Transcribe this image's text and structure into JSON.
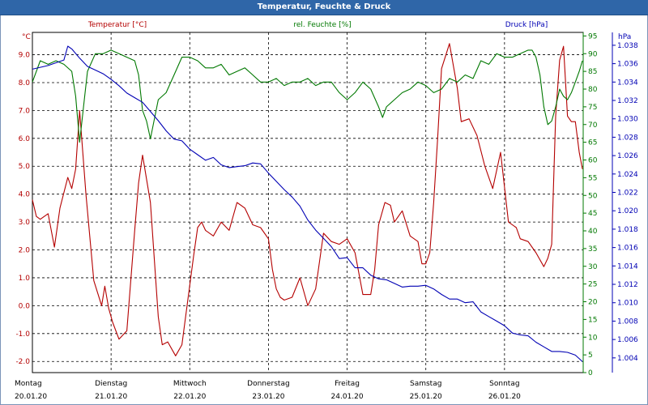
{
  "window": {
    "title": "Temperatur, Feuchte & Druck"
  },
  "colors": {
    "temperature": "#b40000",
    "humidity": "#007800",
    "pressure": "#0000b4",
    "grid": "#000000"
  },
  "chart_data": {
    "type": "line",
    "title": "Temperatur, Feuchte & Druck",
    "grid": true,
    "x_ticks": [
      {
        "day": "Montag",
        "date": "20.01.20"
      },
      {
        "day": "Dienstag",
        "date": "21.01.20"
      },
      {
        "day": "Mittwoch",
        "date": "22.01.20"
      },
      {
        "day": "Donnerstag",
        "date": "23.01.20"
      },
      {
        "day": "Freitag",
        "date": "24.01.20"
      },
      {
        "day": "Samstag",
        "date": "25.01.20"
      },
      {
        "day": "Sonntag",
        "date": "26.01.20"
      }
    ],
    "xlim": [
      0,
      7
    ],
    "axes": {
      "temperature": {
        "label": "Temperatur [°C]",
        "unit": "°C",
        "ylim": [
          -2.4,
          9.8
        ],
        "ticks": [
          "-2.0",
          "-1.0",
          "0.0",
          "1.0",
          "2.0",
          "3.0",
          "4.0",
          "5.0",
          "6.0",
          "7.0",
          "8.0",
          "9.0"
        ]
      },
      "humidity": {
        "label": "rel. Feuchte [%]",
        "unit": "%",
        "ylim": [
          0,
          96
        ],
        "ticks": [
          "0",
          "5",
          "10",
          "15",
          "20",
          "25",
          "30",
          "35",
          "40",
          "45",
          "50",
          "55",
          "60",
          "65",
          "70",
          "75",
          "80",
          "85",
          "90",
          "95"
        ]
      },
      "pressure": {
        "label": "Druck [hPa]",
        "unit": "hPa",
        "ylim": [
          1.0024,
          1.0394
        ],
        "ticks": [
          "1.004",
          "1.006",
          "1.008",
          "1.010",
          "1.012",
          "1.014",
          "1.016",
          "1.018",
          "1.020",
          "1.022",
          "1.024",
          "1.026",
          "1.028",
          "1.030",
          "1.032",
          "1.034",
          "1.036",
          "1.038"
        ]
      }
    },
    "series": [
      {
        "name": "Temperatur [°C]",
        "axis": "temperature",
        "x": [
          0,
          0.05,
          0.1,
          0.2,
          0.28,
          0.35,
          0.45,
          0.5,
          0.55,
          0.6,
          0.68,
          0.78,
          0.88,
          0.92,
          0.97,
          1.02,
          1.1,
          1.2,
          1.3,
          1.35,
          1.4,
          1.5,
          1.6,
          1.65,
          1.72,
          1.82,
          1.9,
          1.97,
          2.05,
          2.1,
          2.15,
          2.2,
          2.3,
          2.4,
          2.5,
          2.6,
          2.7,
          2.8,
          2.9,
          3.0,
          3.05,
          3.1,
          3.15,
          3.2,
          3.3,
          3.4,
          3.5,
          3.6,
          3.7,
          3.8,
          3.9,
          4.0,
          4.1,
          4.2,
          4.3,
          4.35,
          4.4,
          4.48,
          4.55,
          4.6,
          4.7,
          4.8,
          4.9,
          4.95,
          5.0,
          5.05,
          5.1,
          5.15,
          5.2,
          5.3,
          5.4,
          5.45,
          5.55,
          5.65,
          5.75,
          5.85,
          5.95,
          6.05,
          6.15,
          6.2,
          6.3,
          6.4,
          6.5,
          6.55,
          6.6,
          6.65,
          6.7,
          6.75,
          6.8,
          6.85,
          6.9,
          6.95,
          6.99
        ],
        "values": [
          3.8,
          3.2,
          3.1,
          3.3,
          2.1,
          3.5,
          4.6,
          4.2,
          4.9,
          7.0,
          4.0,
          0.9,
          0.0,
          0.7,
          -0.1,
          -0.6,
          -1.2,
          -0.9,
          2.7,
          4.4,
          5.4,
          3.7,
          -0.4,
          -1.4,
          -1.3,
          -1.8,
          -1.4,
          0.1,
          1.8,
          2.8,
          3.0,
          2.7,
          2.5,
          3.0,
          2.7,
          3.7,
          3.5,
          2.9,
          2.8,
          2.4,
          1.3,
          0.6,
          0.3,
          0.2,
          0.3,
          1.0,
          0.0,
          0.6,
          2.6,
          2.3,
          2.2,
          2.4,
          1.9,
          0.4,
          0.4,
          1.3,
          2.9,
          3.7,
          3.6,
          3.0,
          3.4,
          2.5,
          2.3,
          1.5,
          1.5,
          1.9,
          3.7,
          6.0,
          8.5,
          9.4,
          7.8,
          6.6,
          6.7,
          6.1,
          5.0,
          4.2,
          5.5,
          3.0,
          2.8,
          2.4,
          2.3,
          1.9,
          1.4,
          1.7,
          2.2,
          6.8,
          8.8,
          9.3,
          6.8,
          6.6,
          6.6,
          5.5,
          4.9
        ]
      },
      {
        "name": "rel. Feuchte [%]",
        "axis": "humidity",
        "x": [
          0,
          0.1,
          0.2,
          0.3,
          0.4,
          0.5,
          0.55,
          0.6,
          0.65,
          0.7,
          0.8,
          0.9,
          1.0,
          1.1,
          1.2,
          1.3,
          1.35,
          1.4,
          1.45,
          1.5,
          1.6,
          1.7,
          1.8,
          1.9,
          2.0,
          2.1,
          2.2,
          2.3,
          2.4,
          2.5,
          2.6,
          2.7,
          2.8,
          2.9,
          3.0,
          3.1,
          3.2,
          3.3,
          3.4,
          3.5,
          3.6,
          3.7,
          3.8,
          3.9,
          4.0,
          4.1,
          4.2,
          4.3,
          4.4,
          4.45,
          4.5,
          4.6,
          4.7,
          4.8,
          4.9,
          5.0,
          5.1,
          5.2,
          5.3,
          5.4,
          5.5,
          5.6,
          5.7,
          5.8,
          5.9,
          6.0,
          6.1,
          6.2,
          6.3,
          6.35,
          6.4,
          6.45,
          6.5,
          6.55,
          6.6,
          6.65,
          6.7,
          6.75,
          6.8,
          6.85,
          6.9,
          6.95,
          6.99
        ],
        "values": [
          82,
          88,
          87,
          88,
          87,
          85,
          78,
          65,
          75,
          85,
          90,
          90,
          91,
          90,
          89,
          88,
          84,
          74,
          71,
          66,
          77,
          79,
          84,
          89,
          89,
          88,
          86,
          86,
          87,
          84,
          85,
          86,
          84,
          82,
          82,
          83,
          81,
          82,
          82,
          83,
          81,
          82,
          82,
          79,
          77,
          79,
          82,
          80,
          75,
          72,
          75,
          77,
          79,
          80,
          82,
          81,
          79,
          80,
          83,
          82,
          84,
          83,
          88,
          87,
          90,
          89,
          89,
          90,
          91,
          91,
          89,
          84,
          75,
          70,
          71,
          75,
          80,
          78,
          77,
          79,
          82,
          85,
          88
        ]
      },
      {
        "name": "Druck [hPa]",
        "axis": "pressure",
        "x": [
          0,
          0.1,
          0.2,
          0.3,
          0.4,
          0.45,
          0.5,
          0.6,
          0.7,
          0.8,
          0.9,
          1.0,
          1.1,
          1.2,
          1.3,
          1.4,
          1.5,
          1.6,
          1.7,
          1.8,
          1.9,
          2.0,
          2.1,
          2.2,
          2.3,
          2.4,
          2.5,
          2.6,
          2.7,
          2.8,
          2.9,
          3.0,
          3.1,
          3.2,
          3.3,
          3.4,
          3.5,
          3.6,
          3.7,
          3.8,
          3.9,
          4.0,
          4.1,
          4.2,
          4.3,
          4.4,
          4.5,
          4.6,
          4.7,
          4.8,
          4.9,
          5.0,
          5.1,
          5.2,
          5.3,
          5.4,
          5.5,
          5.6,
          5.7,
          5.8,
          5.9,
          6.0,
          6.1,
          6.2,
          6.3,
          6.4,
          6.5,
          6.6,
          6.7,
          6.8,
          6.9,
          6.99
        ],
        "values": [
          1.0354,
          1.0356,
          1.0358,
          1.0361,
          1.0364,
          1.0379,
          1.0376,
          1.0366,
          1.0357,
          1.0353,
          1.0349,
          1.0343,
          1.0336,
          1.0328,
          1.0323,
          1.0318,
          1.0308,
          1.0298,
          1.0287,
          1.0278,
          1.0276,
          1.0267,
          1.0261,
          1.0255,
          1.0258,
          1.025,
          1.0247,
          1.0248,
          1.0249,
          1.0252,
          1.0251,
          1.0241,
          1.0232,
          1.0223,
          1.0215,
          1.0205,
          1.019,
          1.0179,
          1.017,
          1.0161,
          1.0148,
          1.0149,
          1.0138,
          1.0138,
          1.013,
          1.0126,
          1.0125,
          1.0121,
          1.0117,
          1.0118,
          1.0118,
          1.0119,
          1.0115,
          1.0109,
          1.0104,
          1.0104,
          1.01,
          1.0101,
          1.009,
          1.0085,
          1.008,
          1.0075,
          1.0067,
          1.0065,
          1.0064,
          1.0057,
          1.0052,
          1.0047,
          1.0047,
          1.0046,
          1.0043,
          1.0036
        ]
      }
    ]
  }
}
